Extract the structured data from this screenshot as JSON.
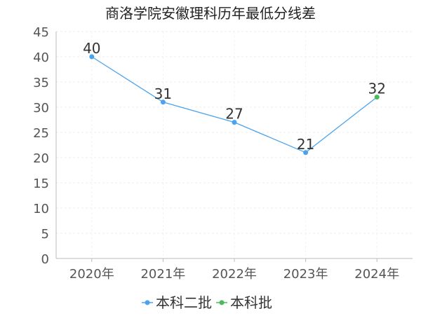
{
  "chart_data": {
    "type": "line",
    "title": "商洛学院安徽理科历年最低分线差",
    "categories": [
      "2020年",
      "2021年",
      "2022年",
      "2023年",
      "2024年"
    ],
    "series": [
      {
        "name": "本科二批",
        "color": "#4aa3f0",
        "values": [
          40,
          31,
          27,
          21,
          null
        ]
      },
      {
        "name": "本科批",
        "color": "#4cba5c",
        "values": [
          null,
          null,
          null,
          21,
          32
        ]
      }
    ],
    "points": [
      {
        "category": "2020年",
        "value": 40,
        "series": "本科二批",
        "label": "40"
      },
      {
        "category": "2021年",
        "value": 31,
        "series": "本科二批",
        "label": "31"
      },
      {
        "category": "2022年",
        "value": 27,
        "series": "本科二批",
        "label": "27"
      },
      {
        "category": "2023年",
        "value": 21,
        "series": "本科二批",
        "label": "21"
      },
      {
        "category": "2024年",
        "value": 32,
        "series": "本科批",
        "label": "32"
      }
    ],
    "ylim": [
      0,
      45
    ],
    "yticks": [
      "0",
      "5",
      "10",
      "15",
      "20",
      "25",
      "30",
      "35",
      "40",
      "45"
    ],
    "xlabel": "",
    "ylabel": "",
    "grid": true,
    "legend": "bottom",
    "line_color": "#4aa3f0"
  }
}
